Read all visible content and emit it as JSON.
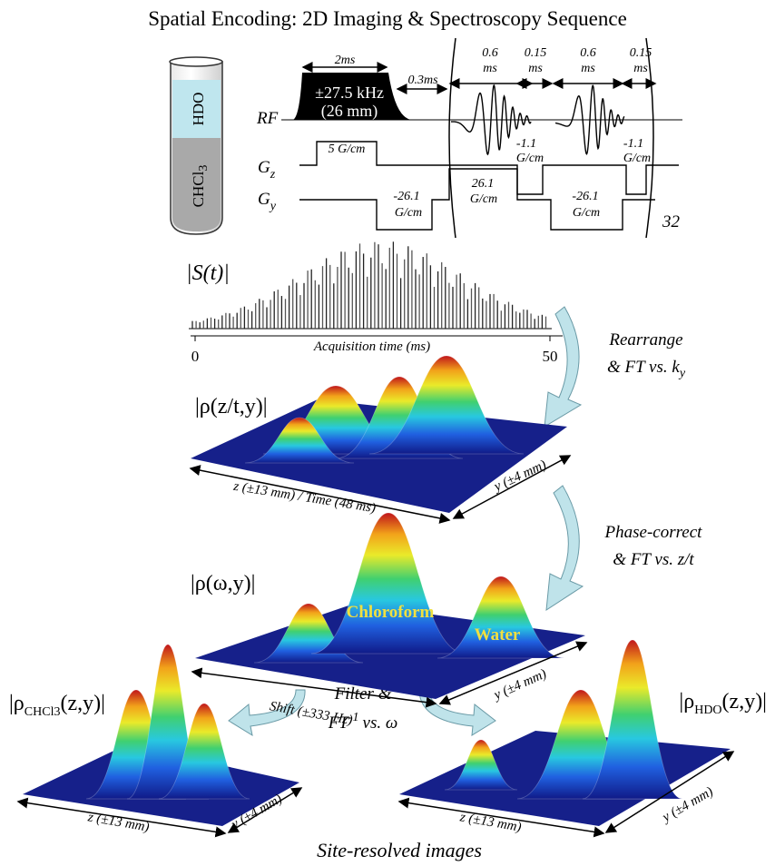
{
  "title": "Spatial Encoding: 2D Imaging & Spectroscopy Sequence",
  "sample_tube": {
    "upper_layer": "HDO",
    "lower_layer": "CHCl",
    "lower_layer_subscript": "3"
  },
  "pulse_sequence": {
    "rf_label": "RF",
    "gz_label": "G",
    "gz_subscript": "z",
    "gy_label": "G",
    "gy_subscript": "y",
    "excitation_duration": "2ms",
    "excitation_bandwidth": "±27.5 kHz",
    "excitation_extent": "(26 mm)",
    "delay": "0.3ms",
    "chirp_1_duration": [
      "0.6",
      "ms"
    ],
    "gap_1_duration": [
      "0.15",
      "ms"
    ],
    "chirp_2_duration": [
      "0.6",
      "ms"
    ],
    "gap_2_duration": [
      "0.15",
      "ms"
    ],
    "gz_excitation": "5 G/cm",
    "gz_blip_1": [
      "-1.1",
      "G/cm"
    ],
    "gz_blip_2": [
      "-1.1",
      "G/cm"
    ],
    "gy_prephase": [
      "-26.1",
      "G/cm"
    ],
    "gy_positive": [
      "26.1",
      "G/cm"
    ],
    "gy_negative": [
      "-26.1",
      "G/cm"
    ],
    "loop_count": "32"
  },
  "signal": {
    "label": "|S(t)|",
    "axis_title": "Acquisition time (ms)",
    "axis_start": "0",
    "axis_end": "50"
  },
  "step_1": {
    "line_1": "Rearrange",
    "line_2": "& FT vs. k",
    "line_2_subscript": "y"
  },
  "hybrid_image": {
    "label": "|ρ(z/t,y)|",
    "axis_1": "z (±13 mm) / Time (48 ms)",
    "axis_2": "y (±4 mm)"
  },
  "step_2": {
    "line_1": "Phase-correct",
    "line_2": "& FT vs. z/t"
  },
  "spectral_image": {
    "label": "|ρ(ω,y)|",
    "peak_1": "Chloroform",
    "peak_2": "Water",
    "axis_1": "Shift (±333 Hz)",
    "axis_2": "y (±4 mm)"
  },
  "step_3": {
    "line_1": "Filter &",
    "line_2": "FT",
    "line_2_superscript": "-1",
    "line_2_end": "vs. ω"
  },
  "chloroform_image": {
    "label_start": "|ρ",
    "label_subscript": "CHCl",
    "label_subscript_2": "3",
    "label_end": "(z,y)|",
    "axis_1": "z (±13 mm)",
    "axis_2": "y (±4 mm)"
  },
  "water_image": {
    "label_start": "|ρ",
    "label_subscript": "HDO",
    "label_end": "(z,y)|",
    "axis_1": "z (±13 mm)",
    "axis_2": "y (±4 mm)"
  },
  "caption": "Site-resolved images"
}
